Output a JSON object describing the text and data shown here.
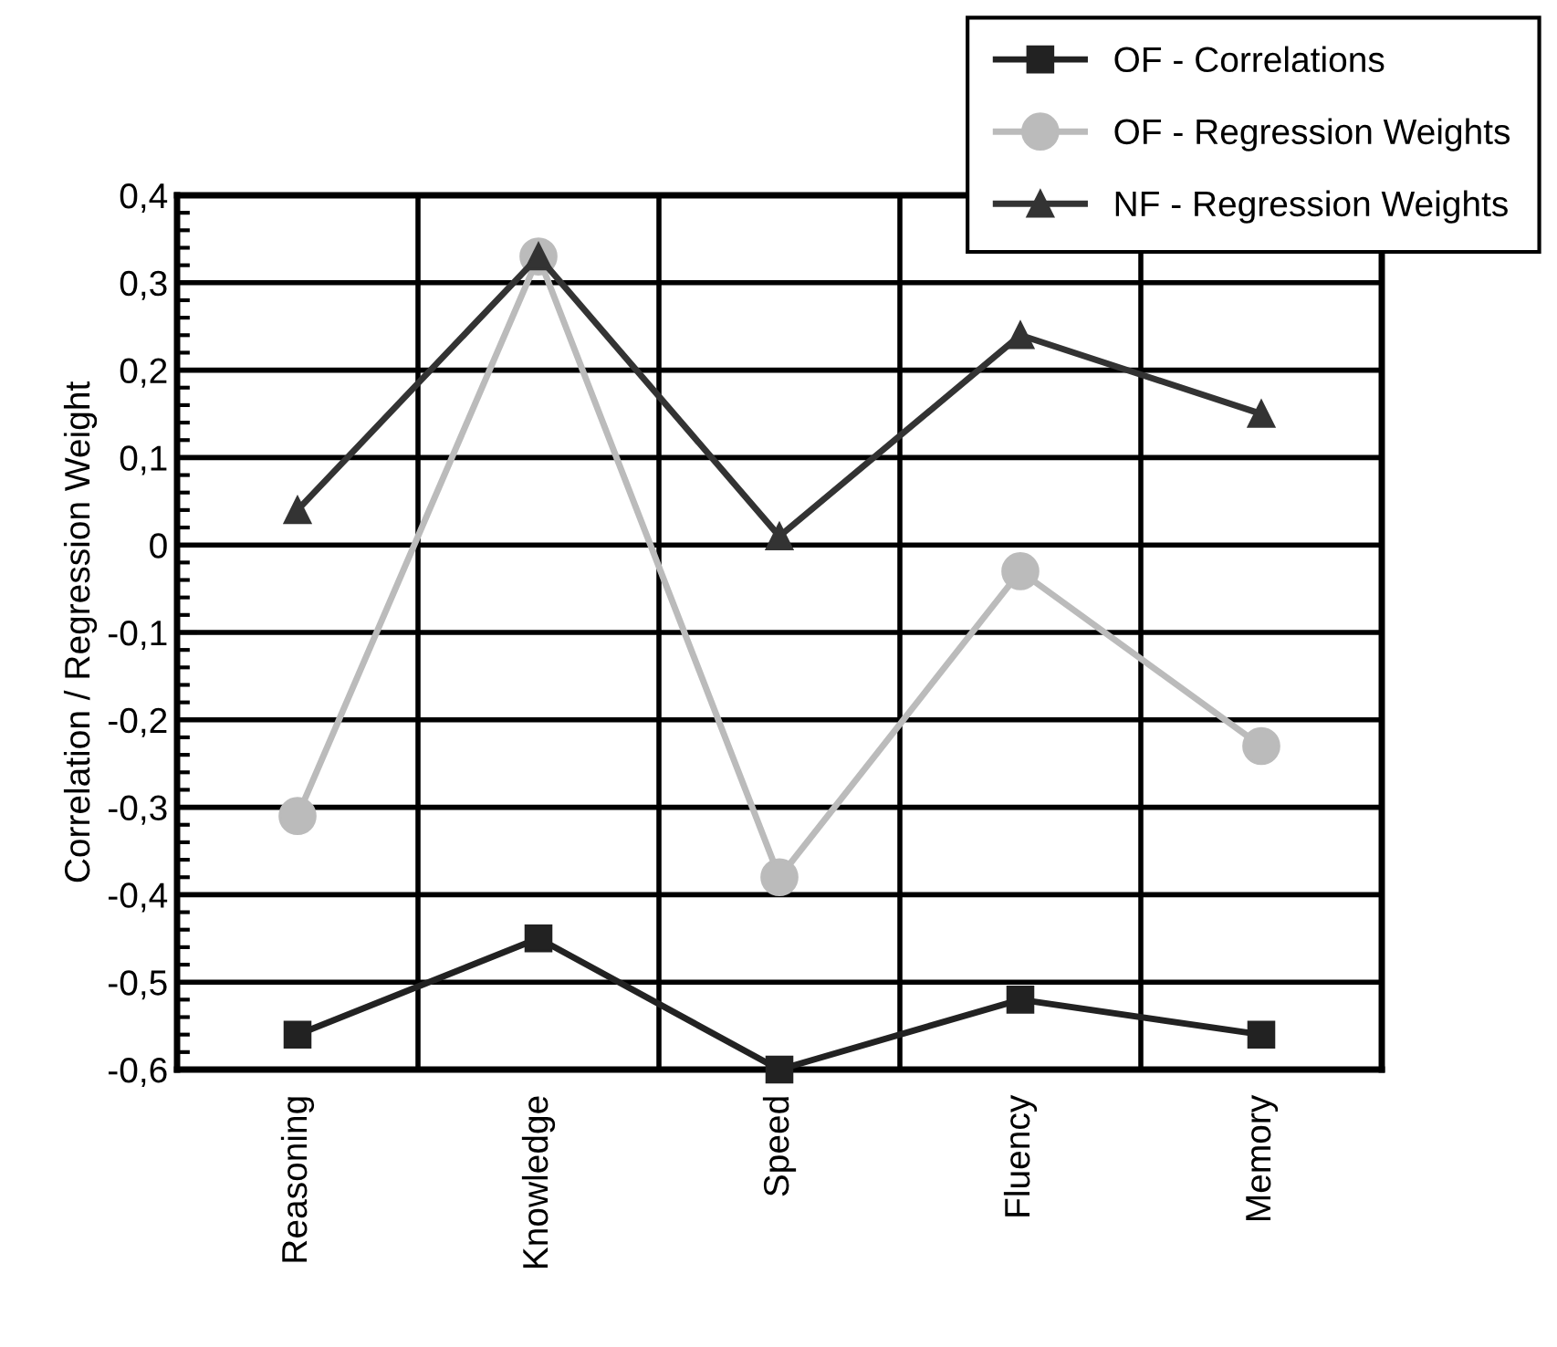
{
  "chart_data": {
    "type": "line",
    "ylabel": "Correlation / Regression Weight",
    "categories": [
      "Reasoning",
      "Knowledge",
      "Speed",
      "Fluency",
      "Memory"
    ],
    "series": [
      {
        "name": "OF - Correlations",
        "color": "#222222",
        "marker": "square",
        "values": [
          -0.56,
          -0.45,
          -0.6,
          -0.52,
          -0.56
        ]
      },
      {
        "name": "OF - Regression Weights",
        "color": "#bbbbbb",
        "marker": "circle",
        "values": [
          -0.31,
          0.33,
          -0.38,
          -0.03,
          -0.23
        ]
      },
      {
        "name": "NF - Regression Weights",
        "color": "#333333",
        "marker": "triangle",
        "values": [
          0.04,
          0.33,
          0.01,
          0.24,
          0.15
        ]
      }
    ],
    "ylim": [
      -0.6,
      0.4
    ],
    "yticks": [
      {
        "value": -0.6,
        "label": "-0,6"
      },
      {
        "value": -0.5,
        "label": "-0,5"
      },
      {
        "value": -0.4,
        "label": "-0,4"
      },
      {
        "value": -0.3,
        "label": "-0,3"
      },
      {
        "value": -0.2,
        "label": "-0,2"
      },
      {
        "value": -0.1,
        "label": "-0,1"
      },
      0,
      {
        "value": 0.1,
        "label": "0,1"
      },
      {
        "value": 0.2,
        "label": "0,2"
      },
      {
        "value": 0.3,
        "label": "0,3"
      },
      {
        "value": 0.4,
        "label": "0,4"
      }
    ],
    "grid": true,
    "legend": "top right",
    "line_style": "solid"
  }
}
